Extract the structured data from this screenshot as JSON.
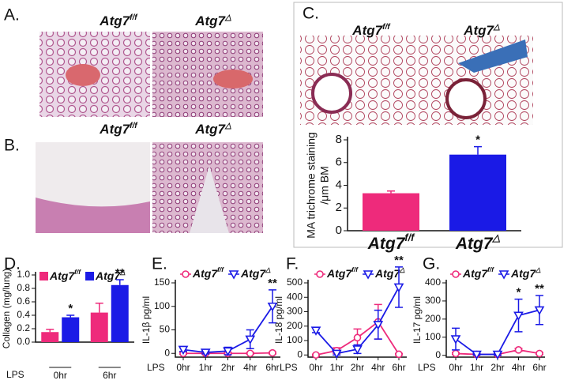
{
  "figure": {
    "panels": [
      {
        "label": "A.",
        "titles": [
          {
            "base": "Atg7",
            "sup": "f/f"
          },
          {
            "base": "Atg7",
            "sup": "△"
          }
        ]
      },
      {
        "label": "B.",
        "titles": [
          {
            "base": "Atg7",
            "sup": "f/f"
          },
          {
            "base": "Atg7",
            "sup": "△"
          }
        ]
      },
      {
        "label": "C.",
        "titles": [
          {
            "base": "Atg7",
            "sup": "f/f"
          },
          {
            "base": "Atg7",
            "sup": "△"
          }
        ]
      }
    ]
  },
  "chart_data": [
    {
      "type": "bar",
      "categories": [
        {
          "base": "Atg7",
          "sup": "f/f"
        },
        {
          "base": "Atg7",
          "sup": "△"
        }
      ],
      "values": [
        3.3,
        6.7
      ],
      "errors": [
        0.2,
        0.7
      ],
      "significance": [
        null,
        "*"
      ],
      "colors": [
        "#ee2a7b",
        "#1a1ae6"
      ],
      "ylabel": [
        "MA trichrome staining",
        "/μm BM"
      ],
      "ylim": [
        0,
        8
      ],
      "yticks": [
        0,
        2,
        4,
        6,
        8
      ]
    },
    {
      "type": "bar",
      "panel": "D.",
      "xlabel": "LPS",
      "categories": [
        "0hr",
        "6hr"
      ],
      "ylabel": "Collagen (mg/lung)",
      "ylim": [
        0,
        1
      ],
      "yticks": [
        {
          "value": 0,
          "label": "0.0"
        },
        0.2,
        0.4,
        0.6,
        0.8,
        {
          "value": 1,
          "label": "1.0"
        }
      ],
      "series": [
        {
          "name": {
            "base": "Atg7",
            "sup": "f/f"
          },
          "color": "#ee2a7b",
          "values": [
            0.15,
            0.44
          ],
          "errors": [
            0.04,
            0.14
          ],
          "significance": [
            null,
            null
          ]
        },
        {
          "name": {
            "base": "Atg7",
            "sup": "△"
          },
          "color": "#1a1ae6",
          "values": [
            0.37,
            0.85
          ],
          "errors": [
            0.03,
            0.08
          ],
          "significance": [
            "*",
            "**"
          ]
        }
      ]
    },
    {
      "type": "line",
      "panel": "E.",
      "xlabel": "LPS",
      "categories": [
        "0hr",
        "1hr",
        "2hr",
        "4hr",
        "6hr"
      ],
      "ylabel": "IL-1β pg/ml",
      "ylim": [
        -8,
        150
      ],
      "yticks": [
        0,
        50,
        100,
        150
      ],
      "series": [
        {
          "name": {
            "base": "Atg7",
            "sup": "f/f"
          },
          "color": "#ee2a7b",
          "marker": "circle",
          "values": [
            0,
            0,
            0,
            0,
            1
          ],
          "errors": [
            2,
            2,
            2,
            2,
            2
          ],
          "significance": [
            null,
            null,
            null,
            null,
            null
          ]
        },
        {
          "name": {
            "base": "Atg7",
            "sup": "△"
          },
          "color": "#1a1ae6",
          "marker": "triangle",
          "values": [
            8,
            2,
            5,
            30,
            100
          ],
          "errors": [
            4,
            3,
            8,
            20,
            35
          ],
          "significance": [
            null,
            null,
            null,
            null,
            "**"
          ]
        }
      ]
    },
    {
      "type": "line",
      "panel": "F.",
      "xlabel": "LPS",
      "categories": [
        "0hr",
        "1hr",
        "2hr",
        "4hr",
        "6hr"
      ],
      "ylabel": "IL-18 pg/ml",
      "ylim": [
        -15,
        500
      ],
      "yticks": [
        0,
        100,
        200,
        300,
        400,
        500
      ],
      "series": [
        {
          "name": {
            "base": "Atg7",
            "sup": "f/f"
          },
          "color": "#ee2a7b",
          "marker": "circle",
          "values": [
            0,
            30,
            120,
            230,
            5
          ],
          "errors": [
            5,
            20,
            60,
            120,
            5
          ],
          "significance": [
            null,
            null,
            null,
            null,
            null
          ]
        },
        {
          "name": {
            "base": "Atg7",
            "sup": "△"
          },
          "color": "#1a1ae6",
          "marker": "triangle",
          "values": [
            170,
            10,
            40,
            210,
            470
          ],
          "errors": [
            15,
            10,
            30,
            100,
            140
          ],
          "significance": [
            null,
            null,
            null,
            null,
            "**"
          ]
        }
      ]
    },
    {
      "type": "line",
      "panel": "G.",
      "xlabel": "LPS",
      "categories": [
        "0hr",
        "1hr",
        "2hr",
        "4hr",
        "6hr"
      ],
      "ylabel": "IL-17 pg/ml",
      "ylim": [
        -10,
        400
      ],
      "yticks": [
        0,
        100,
        200,
        300,
        400
      ],
      "series": [
        {
          "name": {
            "base": "Atg7",
            "sup": "f/f"
          },
          "color": "#ee2a7b",
          "marker": "circle",
          "values": [
            10,
            5,
            5,
            30,
            10
          ],
          "errors": [
            5,
            3,
            3,
            8,
            5
          ],
          "significance": [
            null,
            null,
            null,
            null,
            null
          ]
        },
        {
          "name": {
            "base": "Atg7",
            "sup": "△"
          },
          "color": "#1a1ae6",
          "marker": "triangle",
          "values": [
            90,
            5,
            5,
            220,
            250
          ],
          "errors": [
            60,
            3,
            5,
            90,
            80
          ],
          "significance": [
            null,
            null,
            null,
            "*",
            "**"
          ]
        }
      ]
    }
  ]
}
